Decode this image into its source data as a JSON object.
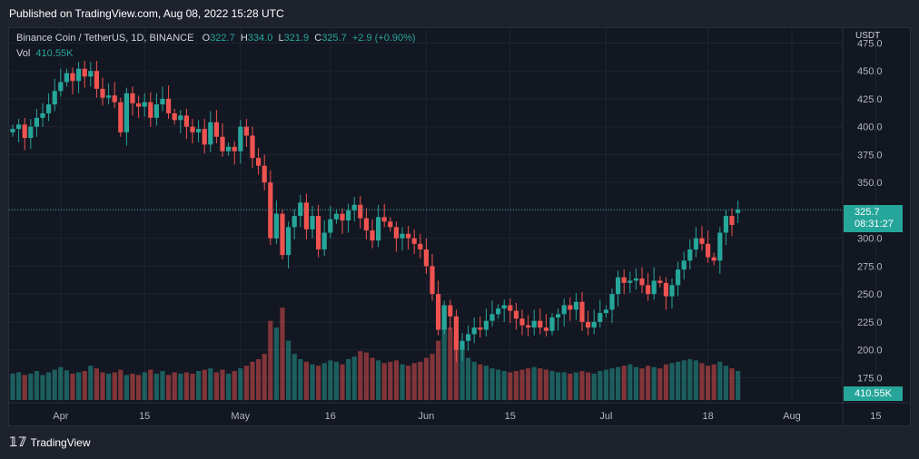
{
  "header": {
    "published": "Published on TradingView.com, Aug 08, 2022 15:28 UTC"
  },
  "legend": {
    "symbol": "Binance Coin / TetherUS, 1D, BINANCE",
    "open_key": "O",
    "open": "322.7",
    "high_key": "H",
    "high": "334.0",
    "low_key": "L",
    "low": "321.9",
    "close_key": "C",
    "close": "325.7",
    "change": "+2.9 (+0.90%)",
    "vol_key": "Vol",
    "vol": "410.55K"
  },
  "price_axis": {
    "unit": "USDT",
    "current_price": "325.7",
    "countdown": "08:31:27",
    "volume_label": "410.55K"
  },
  "footer": {
    "brand": "TradingView"
  },
  "colors": {
    "up": "#26a69a",
    "down": "#ef5350",
    "bg": "#131722",
    "grid": "#1f2430"
  },
  "chart_data": {
    "type": "candlestick",
    "symbol": "BNBUSDT",
    "interval": "1D",
    "ylim": [
      155,
      477
    ],
    "y_ticks": [
      175.0,
      200.0,
      225.0,
      250.0,
      275.0,
      300.0,
      325.0,
      350.0,
      375.0,
      400.0,
      425.0,
      450.0,
      475.0
    ],
    "x_ticks": [
      {
        "label": "Apr",
        "index": 8
      },
      {
        "label": "15",
        "index": 22
      },
      {
        "label": "May",
        "index": 38
      },
      {
        "label": "16",
        "index": 53
      },
      {
        "label": "Jun",
        "index": 69
      },
      {
        "label": "15",
        "index": 83
      },
      {
        "label": "Jul",
        "index": 99
      },
      {
        "label": "18",
        "index": 116
      },
      {
        "label": "Aug",
        "index": 130
      },
      {
        "label": "15",
        "index": 144
      }
    ],
    "current_price": 325.7,
    "closes": [
      398,
      402,
      390,
      400,
      408,
      412,
      420,
      432,
      440,
      448,
      441,
      452,
      445,
      450,
      434,
      426,
      428,
      422,
      395,
      430,
      421,
      418,
      422,
      408,
      420,
      425,
      412,
      406,
      410,
      400,
      395,
      398,
      384,
      404,
      391,
      378,
      382,
      378,
      400,
      392,
      372,
      365,
      350,
      300,
      322,
      285,
      310,
      320,
      332,
      308,
      320,
      290,
      305,
      317,
      322,
      316,
      325,
      330,
      318,
      307,
      298,
      319,
      315,
      310,
      300,
      304,
      300,
      295,
      290,
      275,
      250,
      218,
      240,
      230,
      200,
      208,
      214,
      220,
      218,
      226,
      232,
      237,
      240,
      235,
      228,
      222,
      220,
      226,
      220,
      217,
      229,
      232,
      240,
      236,
      243,
      225,
      220,
      225,
      233,
      236,
      250,
      265,
      260,
      262,
      264,
      258,
      250,
      262,
      260,
      248,
      258,
      272,
      280,
      290,
      300,
      295,
      283,
      280,
      305,
      320,
      312,
      325.7
    ],
    "volumes": [
      40,
      42,
      38,
      40,
      44,
      38,
      42,
      46,
      50,
      45,
      40,
      42,
      44,
      52,
      48,
      42,
      40,
      42,
      46,
      38,
      40,
      38,
      42,
      46,
      40,
      44,
      38,
      42,
      40,
      42,
      40,
      44,
      46,
      48,
      42,
      46,
      40,
      44,
      48,
      52,
      58,
      62,
      70,
      120,
      110,
      140,
      90,
      70,
      62,
      58,
      54,
      52,
      56,
      60,
      58,
      54,
      62,
      66,
      74,
      72,
      64,
      60,
      56,
      58,
      60,
      54,
      52,
      56,
      58,
      64,
      70,
      90,
      120,
      110,
      96,
      76,
      64,
      58,
      54,
      52,
      48,
      46,
      44,
      42,
      44,
      46,
      48,
      50,
      48,
      46,
      44,
      42,
      42,
      40,
      42,
      44,
      42,
      40,
      44,
      46,
      48,
      50,
      52,
      54,
      50,
      48,
      52,
      50,
      48,
      54,
      56,
      58,
      60,
      62,
      60,
      56,
      52,
      54,
      58,
      52,
      48,
      44
    ]
  }
}
